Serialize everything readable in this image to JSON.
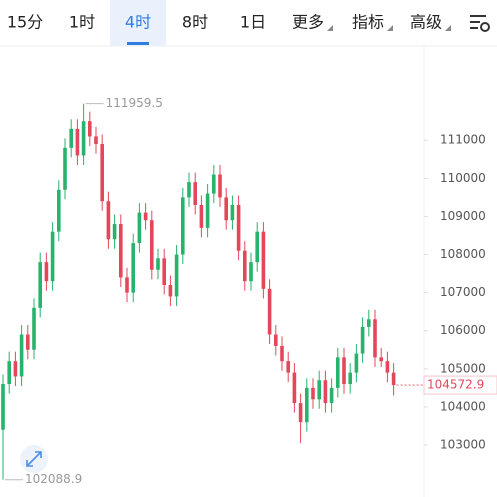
{
  "tabs": [
    "15分",
    "1时",
    "4时",
    "8时",
    "1日",
    "更多",
    "指标",
    "高级"
  ],
  "active_tab": 2,
  "chart_data": {
    "type": "candlestick",
    "up_color": "#27b36b",
    "down_color": "#e5475a",
    "ylim": [
      101950,
      113500
    ],
    "yticks": [
      103000,
      104000,
      105000,
      106000,
      107000,
      108000,
      109000,
      110000,
      111000
    ],
    "open": [
      103400,
      104600,
      105200,
      104800,
      105900,
      105500,
      106600,
      107800,
      107300,
      108600,
      109700,
      110800,
      111300,
      110600,
      111500,
      111100,
      110900,
      109400,
      108400,
      108800,
      107400,
      107000,
      108300,
      109100,
      108900,
      107600,
      107900,
      107200,
      106900,
      108000,
      109500,
      109900,
      109300,
      108700,
      109600,
      110100,
      109500,
      108900,
      109300,
      108100,
      107300,
      107800,
      108600,
      107100,
      105900,
      105600,
      105200,
      104900,
      104100,
      103600,
      104500,
      104200,
      104700,
      104100,
      104500,
      105300,
      104600,
      104900,
      105400,
      106100,
      106300,
      105300,
      105200,
      104900
    ],
    "high": [
      104850,
      105450,
      105450,
      106150,
      106150,
      106850,
      108050,
      108050,
      108850,
      109950,
      111050,
      111550,
      111550,
      111959.5,
      111750,
      111350,
      111150,
      109650,
      109050,
      109050,
      107650,
      108550,
      109350,
      109350,
      109150,
      108150,
      108150,
      107450,
      108250,
      109750,
      110150,
      110150,
      109550,
      109850,
      110350,
      110350,
      109750,
      109550,
      109550,
      108350,
      108050,
      108850,
      108850,
      107350,
      106150,
      105850,
      105450,
      105150,
      104350,
      104750,
      104750,
      104950,
      104950,
      104750,
      105550,
      105550,
      105150,
      105650,
      106350,
      106550,
      106550,
      105550,
      105450,
      105150
    ],
    "low": [
      102088.9,
      104350,
      104550,
      104550,
      105250,
      105250,
      106350,
      107050,
      107050,
      108350,
      109450,
      110550,
      110350,
      110350,
      110850,
      110650,
      109150,
      108150,
      108150,
      107150,
      106750,
      106750,
      108050,
      108650,
      107350,
      107350,
      106950,
      106650,
      106650,
      107750,
      109250,
      109050,
      108450,
      108450,
      109350,
      109250,
      108650,
      108650,
      107850,
      107050,
      107050,
      107550,
      106850,
      105650,
      105350,
      104950,
      104650,
      103850,
      103050,
      103350,
      103950,
      103950,
      103850,
      103850,
      104250,
      104350,
      104350,
      104650,
      105150,
      105850,
      105050,
      105050,
      104650,
      104300
    ],
    "close": [
      104600,
      105200,
      104800,
      105900,
      105500,
      106600,
      107800,
      107300,
      108600,
      109700,
      110800,
      111300,
      110600,
      111500,
      111100,
      110900,
      109400,
      108400,
      108800,
      107400,
      107000,
      108300,
      109100,
      108900,
      107600,
      107900,
      107200,
      106900,
      108000,
      109500,
      109900,
      109300,
      108700,
      109600,
      110100,
      109500,
      108900,
      109300,
      108100,
      107300,
      107800,
      108600,
      107100,
      105900,
      105600,
      105200,
      104900,
      104100,
      103600,
      104500,
      104200,
      104700,
      104100,
      104500,
      105300,
      104600,
      104900,
      105400,
      106100,
      106300,
      105300,
      105200,
      104900,
      104572.9
    ]
  }
}
